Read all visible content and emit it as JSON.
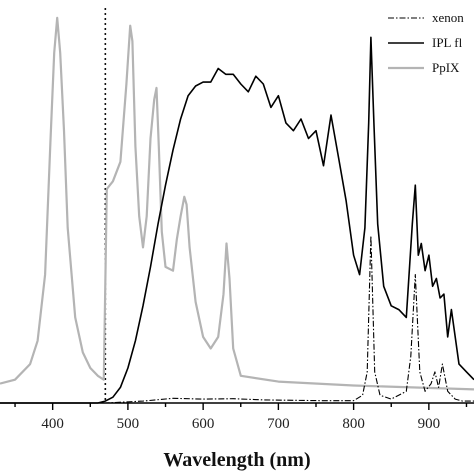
{
  "chart_data": {
    "type": "line",
    "title": "",
    "xlabel": "Wavelength (nm)",
    "ylabel": "",
    "xlim": [
      330,
      960
    ],
    "ylim": [
      0,
      1.0
    ],
    "x_ticks": [
      400,
      500,
      600,
      700,
      800,
      900
    ],
    "cutoff_line_x": 470,
    "legend_position": "top-right",
    "series": [
      {
        "name": "xenon",
        "style": "dash-dot",
        "color": "#000000",
        "x": [
          330,
          470,
          520,
          560,
          600,
          640,
          680,
          720,
          760,
          800,
          812,
          818,
          823,
          828,
          835,
          850,
          870,
          876,
          882,
          888,
          895,
          903,
          908,
          913,
          918,
          925,
          935,
          945,
          960
        ],
        "y": [
          0,
          0,
          0.005,
          0.012,
          0.01,
          0.011,
          0.008,
          0.007,
          0.006,
          0.006,
          0.02,
          0.08,
          0.43,
          0.08,
          0.02,
          0.01,
          0.03,
          0.12,
          0.33,
          0.08,
          0.03,
          0.05,
          0.08,
          0.04,
          0.1,
          0.03,
          0.01,
          0.005,
          0.005
        ]
      },
      {
        "name": "IPL fl",
        "style": "solid",
        "color": "#000000",
        "x": [
          330,
          460,
          470,
          480,
          490,
          500,
          510,
          520,
          530,
          540,
          550,
          560,
          570,
          580,
          590,
          600,
          610,
          620,
          630,
          640,
          650,
          660,
          670,
          680,
          690,
          700,
          710,
          720,
          730,
          740,
          750,
          760,
          770,
          780,
          790,
          800,
          808,
          815,
          820,
          823,
          827,
          832,
          840,
          850,
          860,
          870,
          878,
          882,
          886,
          890,
          895,
          900,
          905,
          910,
          915,
          920,
          925,
          930,
          940,
          950,
          960
        ],
        "y": [
          0,
          0,
          0.005,
          0.015,
          0.04,
          0.09,
          0.16,
          0.25,
          0.35,
          0.46,
          0.56,
          0.65,
          0.73,
          0.79,
          0.815,
          0.825,
          0.825,
          0.86,
          0.845,
          0.845,
          0.82,
          0.8,
          0.84,
          0.82,
          0.76,
          0.79,
          0.72,
          0.7,
          0.73,
          0.68,
          0.7,
          0.61,
          0.74,
          0.63,
          0.52,
          0.38,
          0.33,
          0.45,
          0.72,
          0.94,
          0.72,
          0.46,
          0.3,
          0.25,
          0.24,
          0.22,
          0.46,
          0.56,
          0.38,
          0.41,
          0.34,
          0.38,
          0.3,
          0.32,
          0.27,
          0.28,
          0.17,
          0.24,
          0.1,
          0.08,
          0.06
        ]
      },
      {
        "name": "PpIX",
        "style": "solid",
        "color": "#b4b4b4",
        "x": [
          330,
          350,
          370,
          380,
          390,
          397,
          402,
          406,
          410,
          415,
          420,
          430,
          440,
          450,
          460,
          468,
          472,
          480,
          490,
          498,
          503,
          506,
          510,
          515,
          520,
          525,
          530,
          535,
          538,
          541,
          545,
          550,
          560,
          565,
          570,
          575,
          578,
          582,
          590,
          600,
          610,
          620,
          627,
          631,
          635,
          640,
          650,
          700,
          800,
          960
        ],
        "y": [
          0.05,
          0.06,
          0.1,
          0.16,
          0.33,
          0.67,
          0.9,
          0.99,
          0.9,
          0.7,
          0.45,
          0.22,
          0.13,
          0.09,
          0.07,
          0.06,
          0.55,
          0.57,
          0.62,
          0.82,
          0.97,
          0.93,
          0.66,
          0.48,
          0.4,
          0.48,
          0.68,
          0.78,
          0.81,
          0.66,
          0.44,
          0.35,
          0.34,
          0.42,
          0.48,
          0.53,
          0.51,
          0.4,
          0.26,
          0.17,
          0.14,
          0.17,
          0.28,
          0.41,
          0.32,
          0.14,
          0.07,
          0.055,
          0.045,
          0.035
        ]
      }
    ]
  }
}
